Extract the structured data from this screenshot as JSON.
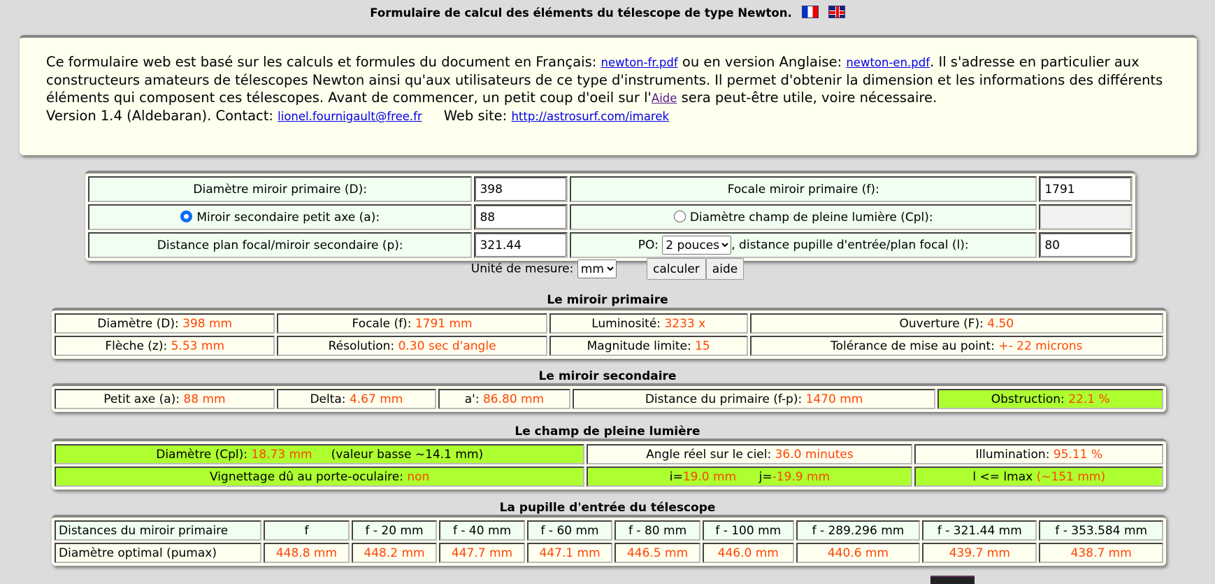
{
  "header": {
    "title": "Formulaire de calcul des éléments du télescope de type Newton.",
    "flag_fr": "flag-fr-icon",
    "flag_en": "flag-uk-icon"
  },
  "intro": {
    "t1": "Ce formulaire web est basé sur les calculs et formules du document en Français: ",
    "link_fr": "newton-fr.pdf",
    "t2": " ou en version Anglaise: ",
    "link_en": "newton-en.pdf",
    "t3": ". Il s'adresse en particulier aux constructeurs amateurs de télescopes Newton ainsi qu'aux utilisateurs de ce type d'instruments. Il permet d'obtenir la dimension et les informations des différents éléments qui composent ces télescopes. Avant de commencer, un petit coup d'oeil sur l'",
    "link_aide": "Aide",
    "t4": " sera peut-être utile, voire nécessaire.",
    "version": "Version 1.4 (Aldebaran). Contact: ",
    "email": "lionel.fournigault@free.fr",
    "website_label": "Web site: ",
    "website": "http://astrosurf.com/imarek"
  },
  "form": {
    "d_label": "Diamètre miroir primaire (D):",
    "d_value": "398",
    "f_label": "Focale miroir primaire (f):",
    "f_value": "1791",
    "a_label": "Miroir secondaire petit axe (a):",
    "a_value": "88",
    "a_selected": true,
    "cpl_label": "Diamètre champ de pleine lumière (Cpl):",
    "cpl_value": "",
    "p_label": "Distance plan focal/miroir secondaire (p):",
    "p_value": "321.44",
    "po_label": "PO:",
    "po_selected": "2 pouces",
    "l_label": ", distance pupille d'entrée/plan focal (l):",
    "l_value": "80",
    "unit_label": "Unité de mesure:",
    "unit_selected": "mm",
    "calc_button": "calculer",
    "help_button": "aide"
  },
  "primary": {
    "title": "Le miroir primaire",
    "rows": [
      [
        {
          "label": "Diamètre (D): ",
          "value": "398 mm"
        },
        {
          "label": "Focale (f): ",
          "value": "1791 mm"
        },
        {
          "label": "Luminosité: ",
          "value": "3233 x"
        },
        {
          "label": "Ouverture (F): ",
          "value": "4.50"
        }
      ],
      [
        {
          "label": "Flèche (z): ",
          "value": "5.53 mm"
        },
        {
          "label": "Résolution: ",
          "value": "0.30 sec d'angle"
        },
        {
          "label": "Magnitude limite: ",
          "value": "15"
        },
        {
          "label": "Tolérance de mise au point: ",
          "value": "+- 22 microns"
        }
      ]
    ]
  },
  "secondary": {
    "title": "Le miroir secondaire",
    "cells": [
      {
        "label": "Petit axe (a): ",
        "value": "88 mm"
      },
      {
        "label": "Delta: ",
        "value": "4.67 mm"
      },
      {
        "label": "a': ",
        "value": "86.80 mm"
      },
      {
        "label": "Distance du primaire (f-p): ",
        "value": "1470 mm"
      },
      {
        "label": "Obstruction: ",
        "value": "22.1 %"
      }
    ]
  },
  "field": {
    "title": "Le champ de pleine lumière",
    "diam_label": "Diamètre (Cpl): ",
    "diam_value": "18.73 mm",
    "diam_note": "(valeur basse ~14.1 mm)",
    "angle_label": "Angle réel sur le ciel: ",
    "angle_value": "36.0 minutes",
    "illum_label": "Illumination: ",
    "illum_value": "95.11 %",
    "vign_label": "Vignettage dû au porte-oculaire: ",
    "vign_value": "non",
    "i_label": "i=",
    "i_value": "19.0 mm",
    "j_label": "j=",
    "j_value": "-19.9 mm",
    "lmax_label": "l <= lmax ",
    "lmax_value": "(~151 mm)",
    "highlight_color": "#adff2f",
    "value_color": "#ff4500"
  },
  "pupil": {
    "title": "La pupille d'entrée du télescope",
    "row1_label": "Distances du miroir primaire",
    "distances": [
      "f",
      "f - 20 mm",
      "f - 40 mm",
      "f - 60 mm",
      "f - 80 mm",
      "f - 100 mm",
      "f - 289.296 mm",
      "f - 321.44 mm",
      "f - 353.584 mm"
    ],
    "row2_label": "Diamètre optimal (pumax)",
    "diameters": [
      "448.8 mm",
      "448.2 mm",
      "447.7 mm",
      "447.1 mm",
      "446.5 mm",
      "446.0 mm",
      "440.6 mm",
      "439.7 mm",
      "438.7 mm"
    ]
  }
}
